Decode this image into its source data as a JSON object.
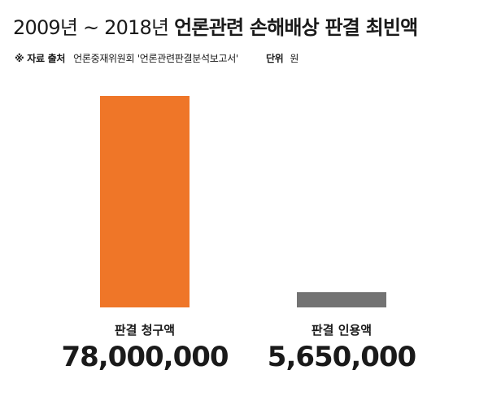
{
  "header": {
    "title_light": "2009년 ~ 2018년",
    "title_bold": "언론관련 손해배상 판결 최빈액",
    "source_key": "※ 자료 출처",
    "source_value": "언론중재위원회 '언론관련판결분석보고서'",
    "unit_key": "단위",
    "unit_value": "원"
  },
  "chart_data": {
    "type": "bar",
    "title": "2009년 ~ 2018년 언론관련 손해배상 판결 최빈액",
    "categories": [
      "판결 청구액",
      "판결 인용액"
    ],
    "values": [
      78000000,
      5650000
    ],
    "value_labels": [
      "78,000,000",
      "5,650,000"
    ],
    "colors": [
      "#ef7628",
      "#737373"
    ],
    "ylim": [
      0,
      78000000
    ],
    "unit": "원",
    "grid": false,
    "legend": "none"
  }
}
